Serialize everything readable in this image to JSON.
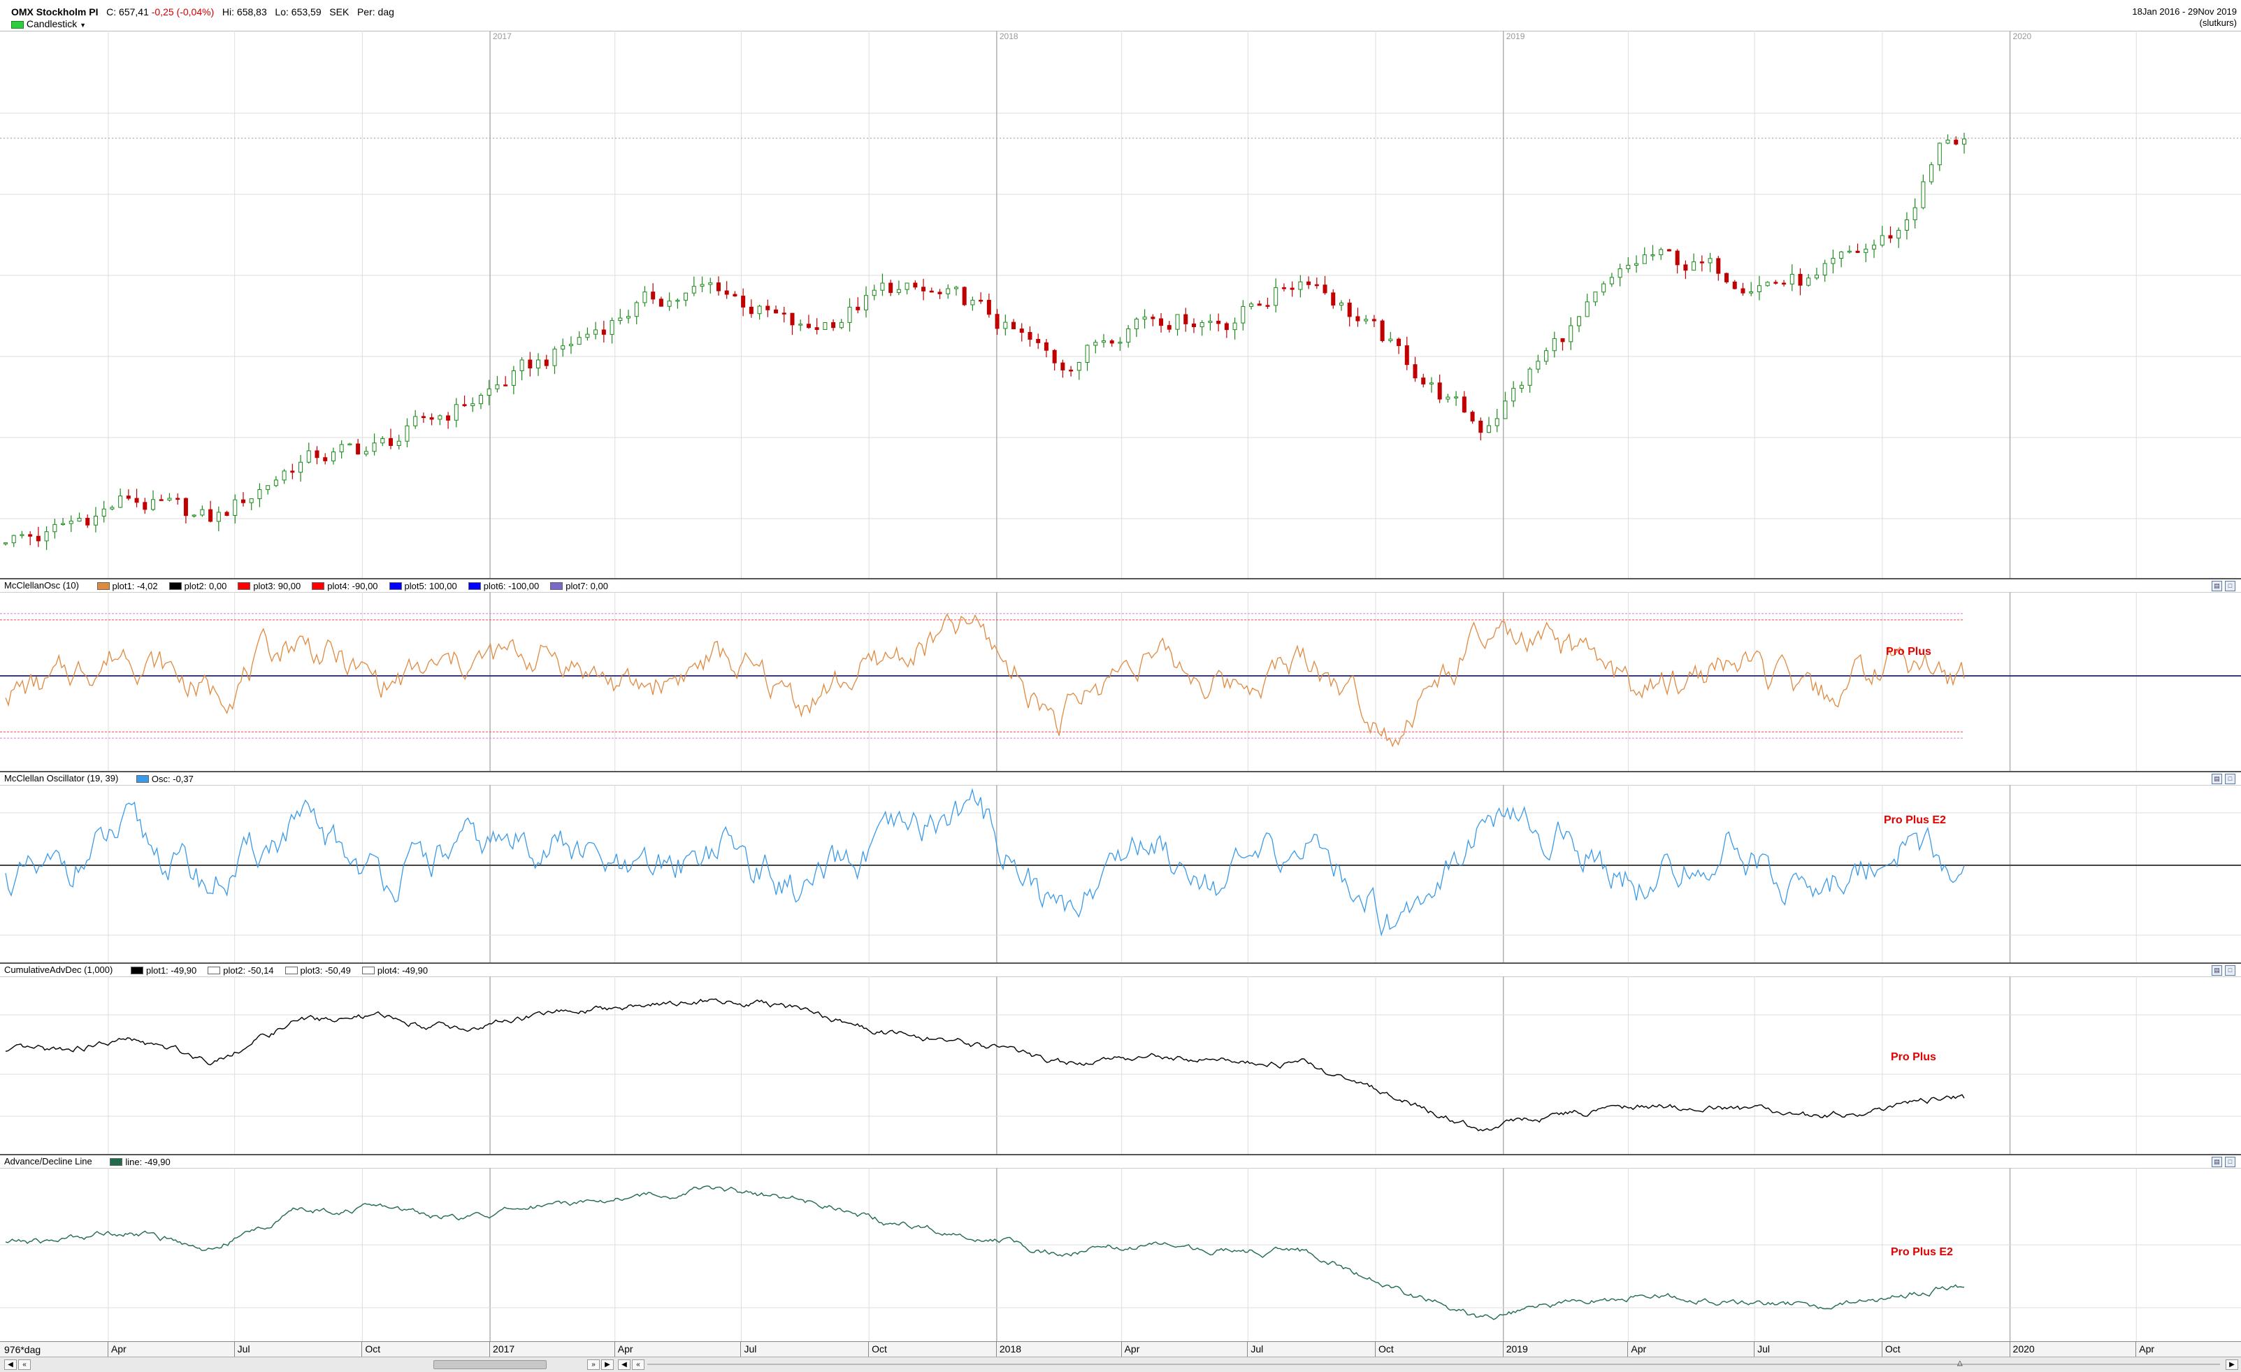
{
  "header": {
    "symbol": "OMX Stockholm PI",
    "close_label": "C:",
    "close_value": "657,41",
    "change": "-0,25 (-0,04%)",
    "high_label": "Hi:",
    "high_value": "658,83",
    "low_label": "Lo:",
    "low_value": "653,59",
    "currency": "SEK",
    "period_label": "Per:",
    "period_value": "dag",
    "chart_type_label": "Candlestick",
    "date_range": "18Jan 2016 - 29Nov 2019",
    "mode_label": "(slutkurs)"
  },
  "panes": {
    "osc1": {
      "title": "McClellanOsc (10)",
      "legend": [
        {
          "label": "plot1: -4,02",
          "color": "#e08a40"
        },
        {
          "label": "plot2: 0,00",
          "color": "#000000"
        },
        {
          "label": "plot3: 90,00",
          "color": "#ff0000"
        },
        {
          "label": "plot4: -90,00",
          "color": "#ff0000"
        },
        {
          "label": "plot5: 100,00",
          "color": "#0000ff"
        },
        {
          "label": "plot6: -100,00",
          "color": "#0000ff"
        },
        {
          "label": "plot7: 0,00",
          "color": "#7b68c8"
        }
      ],
      "annotation": "Pro Plus"
    },
    "osc2": {
      "title": "McClellan Oscillator (19, 39)",
      "legend": [
        {
          "label": "Osc: -0,37",
          "color": "#3a9ae8"
        }
      ],
      "annotation": "Pro Plus E2"
    },
    "cum": {
      "title": "CumulativeAdvDec (1,000)",
      "legend": [
        {
          "label": "plot1: -49,90",
          "color": "#000000"
        },
        {
          "label": "plot2: -50,14",
          "color": "#ffffff"
        },
        {
          "label": "plot3: -50,49",
          "color": "#ffffff"
        },
        {
          "label": "plot4: -49,90",
          "color": "#ffffff"
        }
      ],
      "annotation": "Pro Plus"
    },
    "adl": {
      "title": "Advance/Decline Line",
      "legend": [
        {
          "label": "line: -49,90",
          "color": "#1f6b4a"
        }
      ],
      "annotation": "Pro Plus E2"
    }
  },
  "xaxis": {
    "corner_label": "976*dag",
    "ticks": [
      "Apr",
      "Jul",
      "Oct",
      "2017",
      "Apr",
      "Jul",
      "Oct",
      "2018",
      "Apr",
      "Jul",
      "Oct",
      "2019",
      "Apr",
      "Jul",
      "Oct",
      "2020",
      "Apr"
    ],
    "year_labels": [
      "2017",
      "2018",
      "2019",
      "2020"
    ]
  },
  "colors": {
    "up_candle": "#1a8a1a",
    "down_candle": "#c00000",
    "osc1_line": "#e08a40",
    "osc2_line": "#3a9ae8",
    "cum_line": "#000000",
    "adl_line": "#1f6b4a",
    "annotation": "#e00000"
  },
  "chart_data": [
    {
      "type": "candlestick",
      "title": "OMX Stockholm PI",
      "x_range": [
        "2016-01-18",
        "2019-11-29"
      ],
      "x": [
        "2016-02",
        "2016-04",
        "2016-06",
        "2016-08",
        "2016-10",
        "2016-12",
        "2017-02",
        "2017-04",
        "2017-06",
        "2017-08",
        "2017-10",
        "2017-12",
        "2018-02",
        "2018-04",
        "2018-06",
        "2018-08",
        "2018-10",
        "2018-12",
        "2019-02",
        "2019-04",
        "2019-06",
        "2019-08",
        "2019-10",
        "2019-11"
      ],
      "values": [
        458,
        477,
        465,
        496,
        503,
        525,
        548,
        574,
        583,
        559,
        582,
        573,
        543,
        571,
        567,
        590,
        550,
        512,
        560,
        598,
        589,
        585,
        612,
        657
      ],
      "last_close": 657.41
    },
    {
      "type": "line",
      "title": "McClellanOsc (10)",
      "x": [
        "2016-02",
        "2016-04",
        "2016-06",
        "2016-08",
        "2016-10",
        "2016-12",
        "2017-02",
        "2017-04",
        "2017-06",
        "2017-08",
        "2017-10",
        "2017-12",
        "2018-02",
        "2018-04",
        "2018-06",
        "2018-08",
        "2018-10",
        "2018-12",
        "2019-02",
        "2019-04",
        "2019-06",
        "2019-08",
        "2019-10",
        "2019-11"
      ],
      "values": [
        -20,
        45,
        -30,
        60,
        -15,
        20,
        35,
        -25,
        30,
        -40,
        25,
        80,
        -70,
        40,
        -20,
        30,
        -85,
        55,
        40,
        -30,
        25,
        -45,
        35,
        -4.02
      ],
      "reference_lines": [
        90,
        -90,
        100,
        -100,
        0
      ]
    },
    {
      "type": "line",
      "title": "McClellan Oscillator (19, 39)",
      "x": [
        "2016-02",
        "2016-04",
        "2016-06",
        "2016-08",
        "2016-10",
        "2016-12",
        "2017-02",
        "2017-04",
        "2017-06",
        "2017-08",
        "2017-10",
        "2017-12",
        "2018-02",
        "2018-04",
        "2018-06",
        "2018-08",
        "2018-10",
        "2018-12",
        "2019-02",
        "2019-04",
        "2019-06",
        "2019-08",
        "2019-10",
        "2019-11"
      ],
      "values": [
        -25,
        50,
        -35,
        65,
        -20,
        25,
        40,
        -30,
        35,
        -45,
        30,
        95,
        -80,
        45,
        -25,
        35,
        -90,
        65,
        45,
        -35,
        30,
        -50,
        40,
        -0.37
      ]
    },
    {
      "type": "line",
      "title": "CumulativeAdvDec (1,000)",
      "x": [
        "2016-02",
        "2016-04",
        "2016-06",
        "2016-08",
        "2016-10",
        "2016-12",
        "2017-02",
        "2017-04",
        "2017-06",
        "2017-08",
        "2017-10",
        "2017-12",
        "2018-02",
        "2018-04",
        "2018-06",
        "2018-08",
        "2018-10",
        "2018-12",
        "2019-02",
        "2019-04",
        "2019-06",
        "2019-08",
        "2019-10",
        "2019-11"
      ],
      "values": [
        -38,
        -35,
        -40,
        -30,
        -29,
        -32,
        -28,
        -26,
        -24,
        -27,
        -33,
        -36,
        -41,
        -39,
        -40,
        -41,
        -50,
        -58,
        -54,
        -52,
        -53,
        -55,
        -52,
        -49.9
      ]
    },
    {
      "type": "line",
      "title": "Advance/Decline Line",
      "x": [
        "2016-02",
        "2016-04",
        "2016-06",
        "2016-08",
        "2016-10",
        "2016-12",
        "2017-02",
        "2017-04",
        "2017-06",
        "2017-08",
        "2017-10",
        "2017-12",
        "2018-02",
        "2018-04",
        "2018-06",
        "2018-08",
        "2018-10",
        "2018-12",
        "2019-02",
        "2019-04",
        "2019-06",
        "2019-08",
        "2019-10",
        "2019-11"
      ],
      "values": [
        -38,
        -35,
        -40,
        -30,
        -29,
        -32,
        -28,
        -26,
        -24,
        -27,
        -33,
        -36,
        -41,
        -39,
        -40,
        -41,
        -50,
        -58,
        -54,
        -52,
        -53,
        -55,
        -52,
        -49.9
      ]
    }
  ]
}
